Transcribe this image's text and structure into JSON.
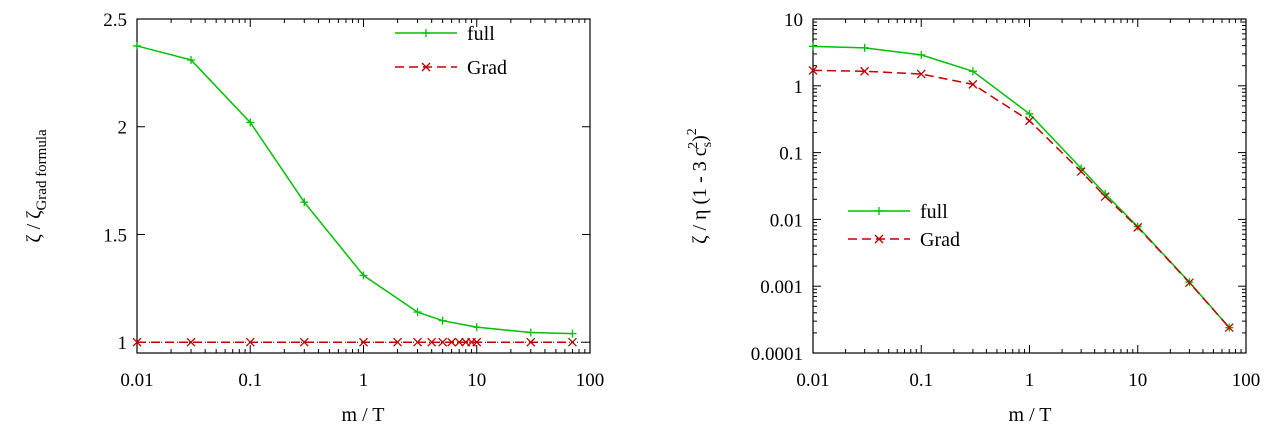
{
  "chart_data": [
    {
      "type": "line",
      "xscale": "log",
      "yscale": "linear",
      "xlabel": "m / T",
      "ylabel": "ζ / ζGrad formula",
      "xlim": [
        0.01,
        100
      ],
      "ylim": [
        0.95,
        2.5
      ],
      "xticks": [
        "0.01",
        "0.1",
        "1",
        "10",
        "100"
      ],
      "yticks": [
        "1",
        "1.5",
        "2",
        "2.5"
      ],
      "legend_position": "top-right",
      "series": [
        {
          "name": "full",
          "color": "#00c000",
          "marker": "plus",
          "dash": "solid",
          "x": [
            0.01,
            0.03,
            0.1,
            0.3,
            1,
            3,
            5,
            10,
            30,
            70
          ],
          "y": [
            2.375,
            2.31,
            2.02,
            1.65,
            1.31,
            1.14,
            1.1,
            1.07,
            1.045,
            1.04
          ]
        },
        {
          "name": "Grad",
          "color": "#c00000",
          "marker": "cross",
          "dash": "dashed",
          "x": [
            0.01,
            0.03,
            0.1,
            0.3,
            1,
            2,
            3,
            4,
            5,
            6,
            7,
            8,
            9,
            10,
            30,
            70
          ],
          "y": [
            1,
            1,
            1,
            1,
            1,
            1,
            1,
            1,
            1,
            1,
            1,
            1,
            1,
            1,
            1,
            1
          ]
        }
      ]
    },
    {
      "type": "line",
      "xscale": "log",
      "yscale": "log",
      "xlabel": "m / T",
      "ylabel": "ζ / η (1 - 3 cs2)2",
      "xlim": [
        0.01,
        100
      ],
      "ylim": [
        0.0001,
        10
      ],
      "xticks": [
        "0.01",
        "0.1",
        "1",
        "10",
        "100"
      ],
      "yticks": [
        "0.0001",
        "0.001",
        "0.01",
        "0.1",
        "1",
        "10"
      ],
      "legend_position": "middle-left",
      "series": [
        {
          "name": "full",
          "color": "#00c000",
          "marker": "plus",
          "dash": "solid",
          "x": [
            0.01,
            0.03,
            0.1,
            0.3,
            1,
            3,
            5,
            10,
            30,
            70
          ],
          "y": [
            3.9,
            3.7,
            2.9,
            1.65,
            0.38,
            0.058,
            0.024,
            0.0078,
            0.00115,
            0.00024
          ]
        },
        {
          "name": "Grad",
          "color": "#c00000",
          "marker": "cross",
          "dash": "dashed",
          "x": [
            0.01,
            0.03,
            0.1,
            0.3,
            1,
            3,
            5,
            10,
            30,
            70
          ],
          "y": [
            1.7,
            1.65,
            1.5,
            1.05,
            0.3,
            0.052,
            0.022,
            0.0076,
            0.00113,
            0.00024
          ]
        }
      ]
    }
  ]
}
